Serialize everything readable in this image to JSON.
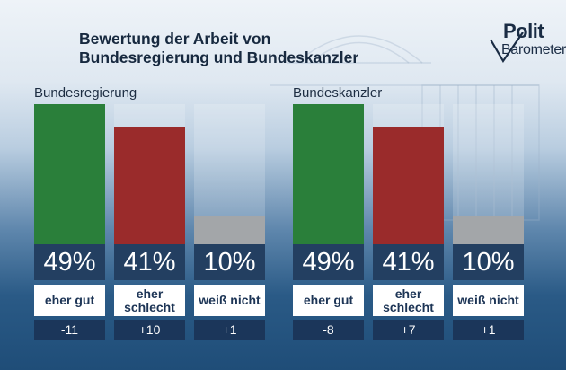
{
  "title_line1": "Bewertung der Arbeit von",
  "title_line2": "Bundesregierung und Bundeskanzler",
  "logo": {
    "top": "Polit",
    "bottom": "Barometer"
  },
  "colors": {
    "eher_gut": "#2a7f3a",
    "eher_schlecht": "#9a2b2b",
    "weiss_nicht": "#a3a6a9"
  },
  "chart_data": [
    {
      "type": "bar",
      "title": "Bundesregierung",
      "categories": [
        "eher gut",
        "eher schlecht",
        "weiß nicht"
      ],
      "values": [
        49,
        41,
        10
      ],
      "value_labels": [
        "49%",
        "41%",
        "10%"
      ],
      "changes": [
        "-11",
        "+10",
        "+1"
      ],
      "ylim": [
        0,
        49
      ]
    },
    {
      "type": "bar",
      "title": "Bundeskanzler",
      "categories": [
        "eher gut",
        "eher schlecht",
        "weiß nicht"
      ],
      "values": [
        49,
        41,
        10
      ],
      "value_labels": [
        "49%",
        "41%",
        "10%"
      ],
      "changes": [
        "-8",
        "+7",
        "+1"
      ],
      "ylim": [
        0,
        49
      ]
    }
  ]
}
